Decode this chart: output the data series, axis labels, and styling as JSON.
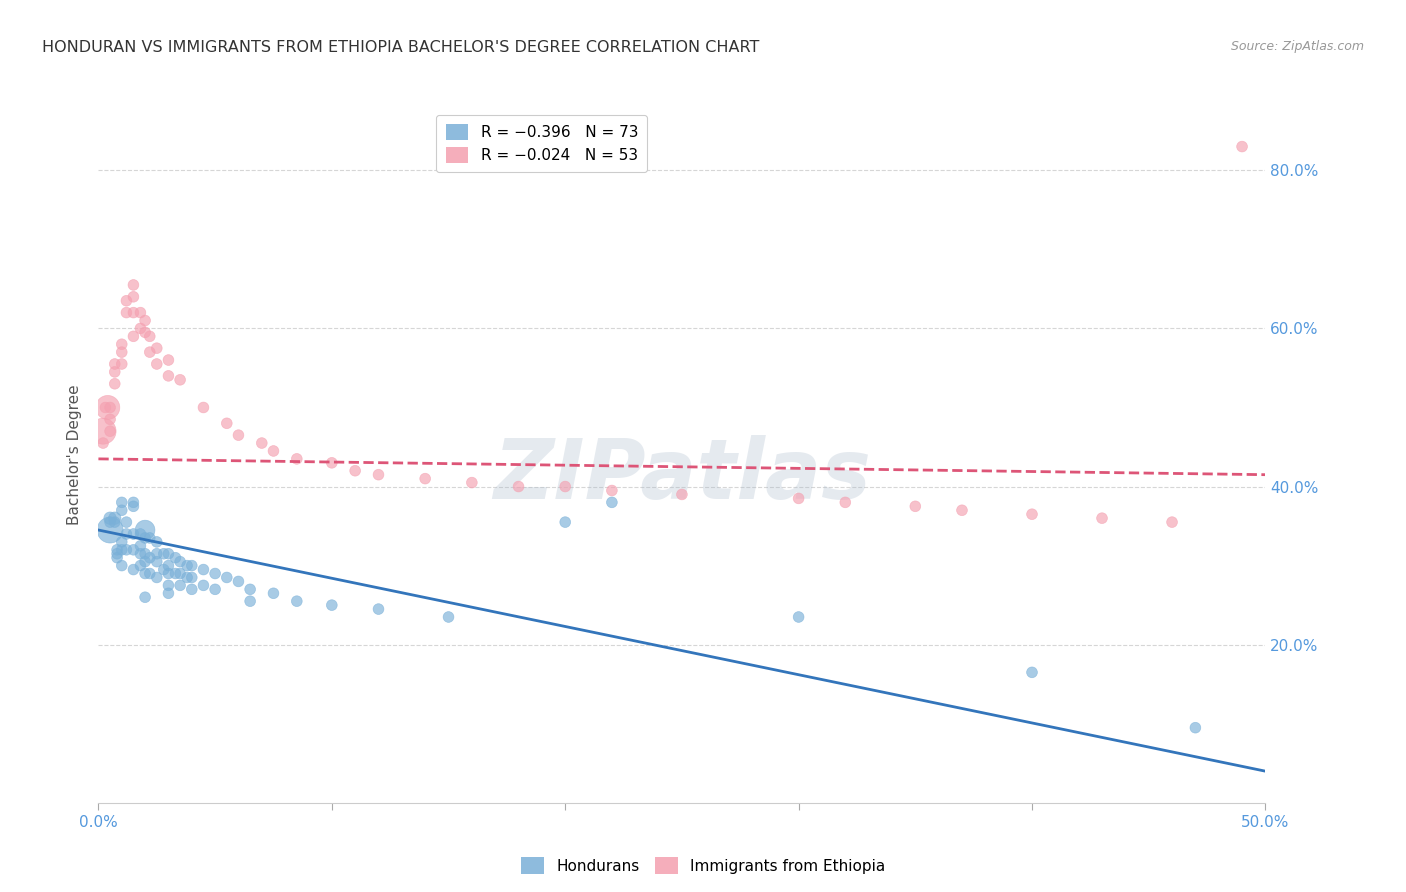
{
  "title": "HONDURAN VS IMMIGRANTS FROM ETHIOPIA BACHELOR'S DEGREE CORRELATION CHART",
  "source": "Source: ZipAtlas.com",
  "x_tick_show": [
    "0.0%",
    "50.0%"
  ],
  "x_tick_show_vals": [
    0.0,
    0.5
  ],
  "ylabel_ticks": [
    "20.0%",
    "40.0%",
    "60.0%",
    "80.0%"
  ],
  "ylabel_tick_vals": [
    0.2,
    0.4,
    0.6,
    0.8
  ],
  "ylabel_label": "Bachelor's Degree",
  "xlim": [
    0.0,
    0.5
  ],
  "ylim": [
    0.0,
    0.88
  ],
  "legend_label_hondurans": "Hondurans",
  "legend_label_ethiopia": "Immigrants from Ethiopia",
  "hondurans_color": "#7ab0d8",
  "ethiopia_color": "#f4a0b0",
  "trendline_hondurans_color": "#3375bb",
  "trendline_ethiopia_color": "#dd5577",
  "watermark": "ZIPatlas",
  "background_color": "#ffffff",
  "grid_color": "#cccccc",
  "tick_label_color": "#5599dd",
  "title_color": "#333333",
  "legend_r1": "R = −0.396   N = 73",
  "legend_r2": "R = −0.024   N = 53",
  "hondurans_x": [
    0.005,
    0.005,
    0.005,
    0.007,
    0.007,
    0.008,
    0.008,
    0.008,
    0.01,
    0.01,
    0.01,
    0.01,
    0.01,
    0.012,
    0.012,
    0.012,
    0.015,
    0.015,
    0.015,
    0.015,
    0.015,
    0.018,
    0.018,
    0.018,
    0.018,
    0.02,
    0.02,
    0.02,
    0.02,
    0.02,
    0.02,
    0.022,
    0.022,
    0.022,
    0.025,
    0.025,
    0.025,
    0.025,
    0.028,
    0.028,
    0.03,
    0.03,
    0.03,
    0.03,
    0.03,
    0.033,
    0.033,
    0.035,
    0.035,
    0.035,
    0.038,
    0.038,
    0.04,
    0.04,
    0.04,
    0.045,
    0.045,
    0.05,
    0.05,
    0.055,
    0.06,
    0.065,
    0.065,
    0.075,
    0.085,
    0.1,
    0.12,
    0.15,
    0.2,
    0.22,
    0.3,
    0.4,
    0.47
  ],
  "hondurans_y": [
    0.345,
    0.36,
    0.355,
    0.36,
    0.355,
    0.32,
    0.315,
    0.31,
    0.38,
    0.37,
    0.33,
    0.32,
    0.3,
    0.355,
    0.34,
    0.32,
    0.38,
    0.375,
    0.34,
    0.32,
    0.295,
    0.34,
    0.325,
    0.315,
    0.3,
    0.345,
    0.335,
    0.315,
    0.305,
    0.29,
    0.26,
    0.335,
    0.31,
    0.29,
    0.33,
    0.315,
    0.305,
    0.285,
    0.315,
    0.295,
    0.315,
    0.3,
    0.29,
    0.275,
    0.265,
    0.31,
    0.29,
    0.305,
    0.29,
    0.275,
    0.3,
    0.285,
    0.3,
    0.285,
    0.27,
    0.295,
    0.275,
    0.29,
    0.27,
    0.285,
    0.28,
    0.27,
    0.255,
    0.265,
    0.255,
    0.25,
    0.245,
    0.235,
    0.355,
    0.38,
    0.235,
    0.165,
    0.095
  ],
  "hondurans_sizes": [
    350,
    80,
    60,
    80,
    60,
    60,
    60,
    60,
    60,
    60,
    60,
    60,
    60,
    60,
    60,
    60,
    60,
    60,
    60,
    60,
    60,
    60,
    60,
    60,
    60,
    200,
    60,
    60,
    60,
    60,
    60,
    60,
    60,
    60,
    60,
    60,
    60,
    60,
    60,
    60,
    60,
    60,
    60,
    60,
    60,
    60,
    60,
    60,
    60,
    60,
    60,
    60,
    60,
    60,
    60,
    60,
    60,
    60,
    60,
    60,
    60,
    60,
    60,
    60,
    60,
    60,
    60,
    60,
    60,
    60,
    60,
    60,
    60
  ],
  "ethiopia_x": [
    0.002,
    0.002,
    0.003,
    0.004,
    0.005,
    0.005,
    0.005,
    0.007,
    0.007,
    0.007,
    0.01,
    0.01,
    0.01,
    0.012,
    0.012,
    0.015,
    0.015,
    0.015,
    0.015,
    0.018,
    0.018,
    0.02,
    0.02,
    0.022,
    0.022,
    0.025,
    0.025,
    0.03,
    0.03,
    0.035,
    0.045,
    0.055,
    0.06,
    0.07,
    0.075,
    0.085,
    0.1,
    0.11,
    0.12,
    0.14,
    0.16,
    0.18,
    0.2,
    0.22,
    0.25,
    0.3,
    0.32,
    0.35,
    0.37,
    0.4,
    0.43,
    0.46,
    0.49
  ],
  "ethiopia_y": [
    0.47,
    0.455,
    0.5,
    0.5,
    0.5,
    0.485,
    0.47,
    0.555,
    0.545,
    0.53,
    0.58,
    0.57,
    0.555,
    0.635,
    0.62,
    0.655,
    0.64,
    0.62,
    0.59,
    0.62,
    0.6,
    0.61,
    0.595,
    0.59,
    0.57,
    0.575,
    0.555,
    0.56,
    0.54,
    0.535,
    0.5,
    0.48,
    0.465,
    0.455,
    0.445,
    0.435,
    0.43,
    0.42,
    0.415,
    0.41,
    0.405,
    0.4,
    0.4,
    0.395,
    0.39,
    0.385,
    0.38,
    0.375,
    0.37,
    0.365,
    0.36,
    0.355,
    0.83
  ],
  "ethiopia_sizes": [
    350,
    60,
    60,
    300,
    60,
    60,
    60,
    60,
    60,
    60,
    60,
    60,
    60,
    60,
    60,
    60,
    60,
    60,
    60,
    60,
    60,
    60,
    60,
    60,
    60,
    60,
    60,
    60,
    60,
    60,
    60,
    60,
    60,
    60,
    60,
    60,
    60,
    60,
    60,
    60,
    60,
    60,
    60,
    60,
    60,
    60,
    60,
    60,
    60,
    60,
    60,
    60,
    60
  ],
  "trendline_hondurans_x0": 0.0,
  "trendline_hondurans_y0": 0.345,
  "trendline_hondurans_x1": 0.5,
  "trendline_hondurans_y1": 0.04,
  "trendline_ethiopia_x0": 0.0,
  "trendline_ethiopia_y0": 0.435,
  "trendline_ethiopia_x1": 0.5,
  "trendline_ethiopia_y1": 0.415
}
